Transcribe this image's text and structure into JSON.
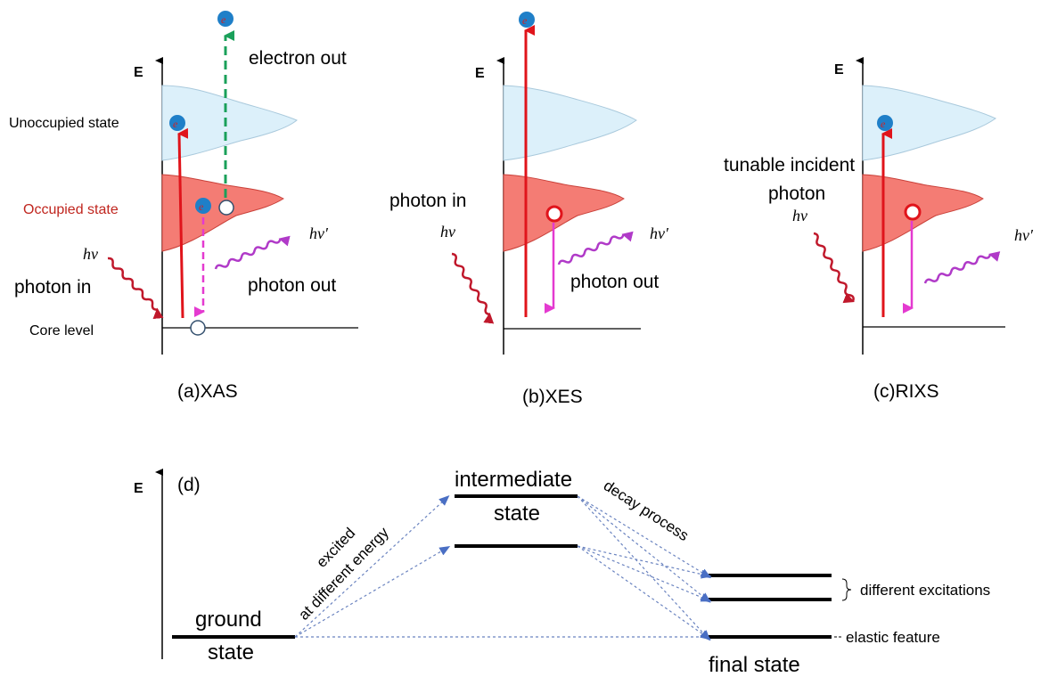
{
  "panels": {
    "xas": {
      "axis_label": "E",
      "electron_symbol": "e",
      "unoccupied_label": "Unoccupied state",
      "occupied_label": "Occupied state",
      "core_label": "Core level",
      "electron_out": "electron out",
      "hv_in": "hν",
      "hv_out": "hν′",
      "photon_in": "photon in",
      "photon_out": "photon out",
      "caption": "(a)XAS"
    },
    "xes": {
      "axis_label": "E",
      "electron_symbol": "e",
      "photon_in": "photon in",
      "hv_in": "hν",
      "hv_out": "hν′",
      "photon_out": "photon out",
      "caption": "(b)XES"
    },
    "rixs": {
      "axis_label": "E",
      "electron_symbol": "e",
      "incident_line1": "tunable incident",
      "incident_line2": "photon",
      "hv_in": "hν",
      "hv_out": "hν′",
      "caption": "(c)RIXS"
    },
    "levels": {
      "axis_label": "E",
      "panel_label": "(d)",
      "ground_line1": "ground",
      "ground_line2": "state",
      "intermediate_line1": "intermediate",
      "intermediate_line2": "state",
      "excited_line1": "excited",
      "excited_line2": "at different energy",
      "decay": "decay process",
      "different_excitations": "different excitations",
      "elastic": "elastic feature",
      "final_state": "final state"
    }
  },
  "colors": {
    "unoccupied_fill": "#dcf0fa",
    "unoccupied_stroke": "#a9c9dc",
    "occupied_fill": "#f47c74",
    "occupied_stroke": "#c9413a",
    "excitation_arrow": "#e0141b",
    "electron_out_arrow": "#1aa05a",
    "emission_arrow": "#e43ad0",
    "wave_in": "#c0182b",
    "wave_out": "#b03ac8",
    "electron_fill": "#1f7fc8",
    "electron_text": "#d42020",
    "hole_stroke": "#e0141b",
    "occupied_label": "#c0261f",
    "dotted_arrow": "#6b84c0"
  }
}
